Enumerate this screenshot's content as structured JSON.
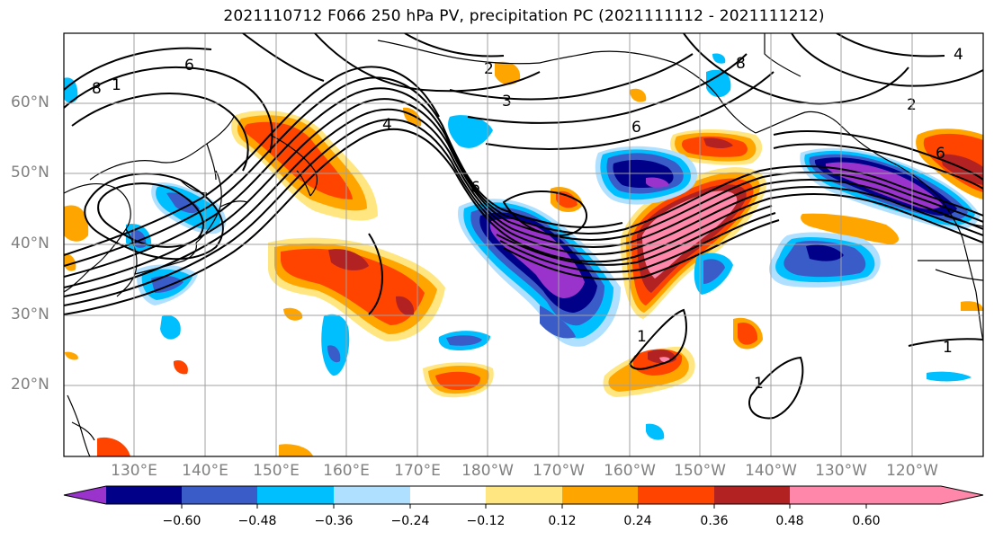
{
  "title": "2021110712 F066 250 hPa PV, precipitation PC (2021111112 - 2021111212)",
  "lat_labels": [
    "60°N",
    "50°N",
    "40°N",
    "30°N",
    "20°N"
  ],
  "lon_labels": [
    "130°E",
    "140°E",
    "150°E",
    "160°E",
    "170°E",
    "180°W",
    "170°W",
    "160°W",
    "150°W",
    "140°W",
    "130°W",
    "120°W"
  ],
  "contour_labels": [
    "6",
    "8",
    "1",
    "6",
    "4",
    "3",
    "2",
    "8",
    "6",
    "1",
    "1",
    "4",
    "2",
    "6",
    "1"
  ],
  "colorbar": {
    "tick_labels": [
      "−0.60",
      "−0.48",
      "−0.36",
      "−0.24",
      "−0.12",
      "0.12",
      "0.24",
      "0.36",
      "0.48",
      "0.60"
    ],
    "colors": [
      "#9933cc",
      "#000088",
      "#3a5cc8",
      "#00bfff",
      "#b0e0ff",
      "#ffffff",
      "#ffe680",
      "#ffa500",
      "#ff4400",
      "#b22222",
      "#ff88aa"
    ]
  },
  "palette": {
    "neg_strong": "#9933cc",
    "neg_dark": "#000088",
    "neg_mid": "#3a5cc8",
    "neg_light": "#00bfff",
    "neg_pale": "#b0e0ff",
    "pos_pale": "#ffe680",
    "pos_light": "#ffa500",
    "pos_mid": "#ff4400",
    "pos_dark": "#b22222",
    "pos_strong": "#ff88aa"
  }
}
